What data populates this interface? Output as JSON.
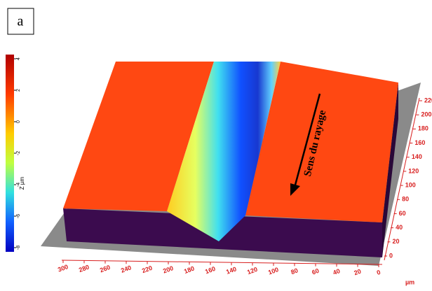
{
  "panel_label": "a",
  "colorbar": {
    "ticks": [
      4,
      2,
      0,
      -2,
      -4,
      -6,
      -8
    ],
    "label": "Z µm"
  },
  "annotation": "Sens du rayage",
  "x_axis": {
    "ticks": [
      300,
      280,
      260,
      240,
      220,
      200,
      180,
      160,
      140,
      120,
      100,
      80,
      60,
      40,
      20,
      0
    ],
    "unit": "µm"
  },
  "y_axis": {
    "ticks": [
      0,
      20,
      40,
      60,
      80,
      100,
      120,
      140,
      160,
      180,
      200,
      220
    ]
  }
}
